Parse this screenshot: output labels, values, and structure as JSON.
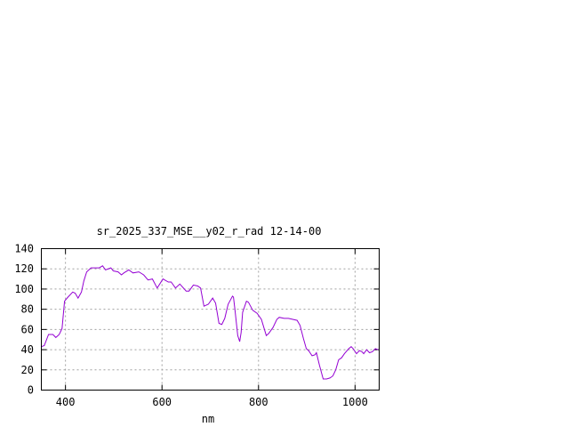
{
  "chart_data": {
    "type": "line",
    "title": "sr_2025_337_MSE__y02_r_rad 12-14-00",
    "xlabel": "nm",
    "ylabel": "",
    "xlim": [
      350,
      1050
    ],
    "ylim": [
      0,
      140
    ],
    "xticks": [
      400,
      600,
      800,
      1000
    ],
    "yticks": [
      0,
      20,
      40,
      60,
      80,
      100,
      120,
      140
    ],
    "grid": true,
    "line_color": "#9400d3",
    "series": [
      {
        "x": [
          350,
          356,
          365,
          374,
          380,
          387,
          393,
          398,
          405,
          415,
          420,
          426,
          433,
          438,
          444,
          453,
          460,
          470,
          477,
          483,
          494,
          499,
          509,
          516,
          521,
          531,
          540,
          552,
          562,
          571,
          580,
          590,
          602,
          613,
          619,
          628,
          637,
          650,
          656,
          665,
          674,
          680,
          687,
          696,
          705,
          711,
          718,
          724,
          730,
          737,
          746,
          748,
          751,
          757,
          761,
          764,
          767,
          775,
          779,
          788,
          797,
          806,
          816,
          821,
          830,
          838,
          843,
          853,
          862,
          871,
          880,
          886,
          893,
          899,
          904,
          911,
          917,
          920,
          926,
          934,
          941,
          948,
          954,
          960,
          966,
          972,
          978,
          987,
          992,
          996,
          1003,
          1009,
          1014,
          1018,
          1024,
          1030,
          1036,
          1042,
          1048
        ],
        "y": [
          43,
          44,
          55,
          55,
          52,
          55,
          61,
          88,
          92,
          97,
          96,
          91,
          97,
          108,
          117,
          121,
          121,
          121,
          123,
          119,
          121,
          118,
          117,
          114,
          116,
          119,
          116,
          117,
          114,
          109,
          110,
          101,
          110,
          107,
          107,
          101,
          105,
          98,
          98,
          104,
          103,
          101,
          83,
          85,
          91,
          86,
          66,
          65,
          71,
          85,
          93,
          92,
          80,
          54,
          48,
          57,
          77,
          88,
          87,
          79,
          76,
          70,
          54,
          56,
          62,
          70,
          72,
          71,
          71,
          70,
          69,
          64,
          51,
          41,
          39,
          34,
          35,
          37,
          25,
          11,
          11,
          12,
          14,
          20,
          30,
          32,
          36,
          41,
          43,
          41,
          36,
          39,
          38,
          36,
          40,
          37,
          38,
          41,
          40
        ]
      }
    ]
  }
}
